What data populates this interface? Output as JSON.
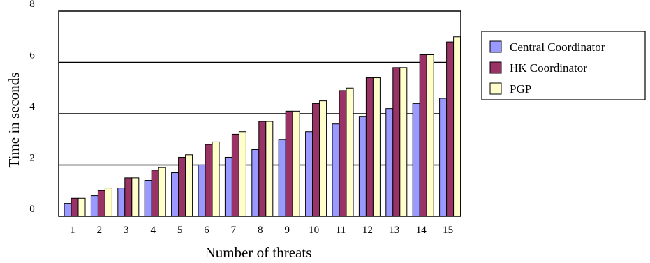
{
  "chart_data": {
    "type": "bar",
    "title": "",
    "xlabel": "Number of threats",
    "ylabel": "Time in seconds",
    "ylim": [
      0,
      8
    ],
    "yticks": [
      0,
      2,
      4,
      6,
      8
    ],
    "grid": "horizontal",
    "legend_position": "right",
    "categories": [
      "1",
      "2",
      "3",
      "4",
      "5",
      "6",
      "7",
      "8",
      "9",
      "10",
      "11",
      "12",
      "13",
      "14",
      "15"
    ],
    "series": [
      {
        "name": "Central Coordinator",
        "color": "#9999ff",
        "values": [
          0.5,
          0.8,
          1.1,
          1.4,
          1.7,
          2.0,
          2.3,
          2.6,
          3.0,
          3.3,
          3.6,
          3.9,
          4.2,
          4.4,
          4.6
        ]
      },
      {
        "name": "HK Coordinator",
        "color": "#993366",
        "values": [
          0.7,
          1.0,
          1.5,
          1.8,
          2.3,
          2.8,
          3.2,
          3.7,
          4.1,
          4.4,
          4.9,
          5.4,
          5.8,
          6.3,
          6.8
        ]
      },
      {
        "name": "PGP",
        "color": "#ffffcc",
        "values": [
          0.7,
          1.1,
          1.5,
          1.9,
          2.4,
          2.9,
          3.3,
          3.7,
          4.1,
          4.5,
          5.0,
          5.4,
          5.8,
          6.3,
          7.0
        ]
      }
    ]
  }
}
